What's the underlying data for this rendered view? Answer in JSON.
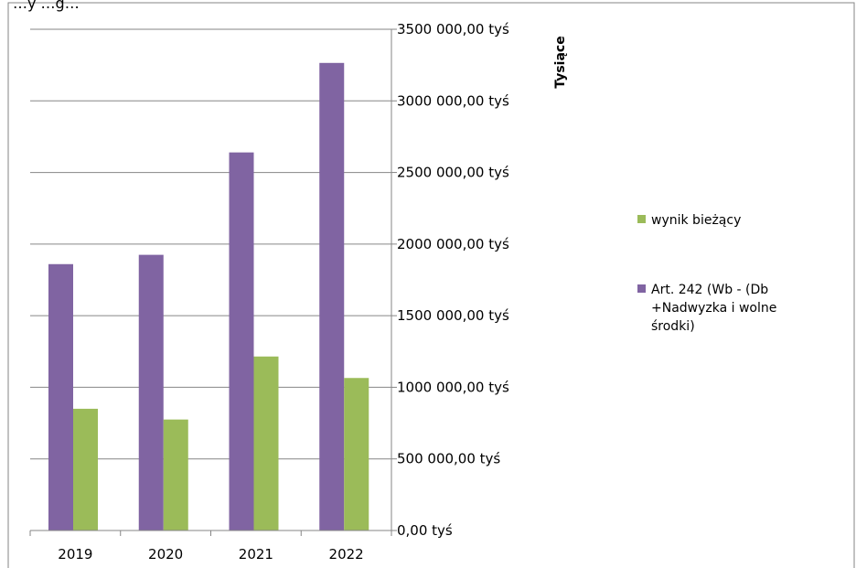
{
  "chart_data": {
    "type": "bar",
    "title_fragment": "…y                 …g…",
    "categories": [
      "2019",
      "2020",
      "2021",
      "2022"
    ],
    "series": [
      {
        "name": "Art. 242 (Wb - (Db +Nadwyzka i wolne środki)",
        "color": "#8064a2",
        "values": [
          1860000,
          1925000,
          2640000,
          3265000
        ]
      },
      {
        "name": "wynik bieżący",
        "color": "#9bbb59",
        "values": [
          850000,
          775000,
          1215000,
          1065000
        ]
      }
    ],
    "y_axis": {
      "position": "right",
      "min": 0,
      "max": 3500000,
      "step": 500000,
      "tick_labels": [
        "0,00 tyś",
        "500 000,00 tyś",
        "1000 000,00 tyś",
        "1500 000,00 tyś",
        "2000 000,00 tyś",
        "2500 000,00 tyś",
        "3000 000,00 tyś",
        "3500 000,00 tyś"
      ],
      "unit_label": "Tysiące"
    },
    "grid": true,
    "legend": {
      "placement": "right",
      "entries": [
        {
          "label_lines": [
            "wynik bieżący"
          ],
          "color": "#9bbb59"
        },
        {
          "label_lines": [
            "Art. 242 (Wb -  (Db",
            "+Nadwyzka i wolne",
            "środki)"
          ],
          "color": "#8064a2"
        }
      ]
    }
  }
}
